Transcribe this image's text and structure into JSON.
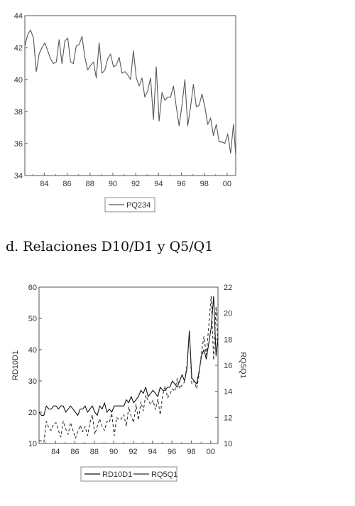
{
  "heading": "d. Relaciones D10/D1 y Q5/Q1",
  "chart_data": [
    {
      "type": "line",
      "title": "",
      "xlabel": "",
      "ylabel": "",
      "xlim": [
        1982.3,
        2000.75
      ],
      "ylim": [
        34,
        44
      ],
      "xticks": [
        "84",
        "86",
        "88",
        "90",
        "92",
        "94",
        "96",
        "98",
        "00"
      ],
      "yticks": [
        "34",
        "36",
        "38",
        "40",
        "42",
        "44"
      ],
      "legend": "bottom-center",
      "series": [
        {
          "name": "PQ234",
          "color": "#555555",
          "x": [
            1982.3,
            1982.55,
            1982.8,
            1983.05,
            1983.3,
            1983.55,
            1983.8,
            1984.05,
            1984.3,
            1984.55,
            1984.8,
            1985.05,
            1985.3,
            1985.55,
            1985.8,
            1986.05,
            1986.3,
            1986.55,
            1986.8,
            1987.05,
            1987.3,
            1987.55,
            1987.8,
            1988.05,
            1988.3,
            1988.55,
            1988.8,
            1989.05,
            1989.3,
            1989.55,
            1989.8,
            1990.05,
            1990.3,
            1990.55,
            1990.8,
            1991.05,
            1991.3,
            1991.55,
            1991.8,
            1992.05,
            1992.3,
            1992.55,
            1992.8,
            1993.05,
            1993.3,
            1993.55,
            1993.8,
            1994.05,
            1994.3,
            1994.55,
            1994.8,
            1995.05,
            1995.3,
            1995.55,
            1995.8,
            1996.05,
            1996.3,
            1996.55,
            1996.8,
            1997.05,
            1997.3,
            1997.55,
            1997.8,
            1998.05,
            1998.3,
            1998.55,
            1998.8,
            1999.05,
            1999.3,
            1999.55,
            1999.8,
            2000.05,
            2000.3,
            2000.55,
            2000.75
          ],
          "y": [
            42.1,
            42.8,
            43.1,
            42.6,
            40.5,
            41.6,
            42.0,
            42.3,
            41.8,
            41.3,
            41.0,
            41.1,
            42.5,
            41.0,
            42.4,
            42.6,
            41.1,
            41.0,
            42.1,
            42.2,
            42.7,
            41.4,
            40.6,
            40.9,
            41.1,
            40.1,
            42.3,
            40.4,
            40.6,
            41.3,
            41.6,
            40.8,
            40.9,
            41.4,
            40.4,
            40.5,
            40.3,
            40.0,
            41.8,
            40.1,
            39.6,
            40.1,
            38.9,
            39.3,
            40.1,
            37.5,
            40.8,
            37.4,
            39.2,
            38.7,
            38.9,
            38.9,
            39.6,
            38.3,
            37.1,
            38.4,
            40.0,
            37.1,
            38.3,
            39.7,
            38.3,
            38.4,
            39.1,
            38.3,
            37.2,
            37.6,
            36.5,
            37.2,
            36.1,
            36.1,
            36.0,
            36.6,
            35.4,
            37.2,
            35.3
          ]
        }
      ]
    },
    {
      "type": "line",
      "title": "",
      "xlabel": "",
      "ylabel": "RD10D1",
      "ylabel_right": "RQ5Q1",
      "xlim": [
        1982.3,
        2000.75
      ],
      "ylim": [
        10,
        60
      ],
      "ylim_right": [
        10,
        22
      ],
      "xticks": [
        "84",
        "86",
        "88",
        "90",
        "92",
        "94",
        "96",
        "98",
        "00"
      ],
      "yticks": [
        "10",
        "20",
        "30",
        "40",
        "50",
        "60"
      ],
      "yticks_right": [
        "10",
        "12",
        "14",
        "16",
        "18",
        "20",
        "22"
      ],
      "legend": "bottom-center",
      "series": [
        {
          "name": "RD10D1",
          "axis": "left",
          "color": "#111111",
          "dash": "solid",
          "x": [
            1982.3,
            1982.55,
            1982.8,
            1983.05,
            1983.3,
            1983.55,
            1983.8,
            1984.05,
            1984.3,
            1984.55,
            1984.8,
            1985.05,
            1985.3,
            1985.55,
            1985.8,
            1986.05,
            1986.3,
            1986.55,
            1986.8,
            1987.05,
            1987.3,
            1987.55,
            1987.8,
            1988.05,
            1988.3,
            1988.55,
            1988.8,
            1989.05,
            1989.3,
            1989.55,
            1989.8,
            1990.05,
            1990.3,
            1990.55,
            1990.8,
            1991.05,
            1991.3,
            1991.55,
            1991.8,
            1992.05,
            1992.3,
            1992.55,
            1992.8,
            1993.05,
            1993.3,
            1993.55,
            1993.8,
            1994.05,
            1994.3,
            1994.55,
            1994.8,
            1995.05,
            1995.3,
            1995.55,
            1995.8,
            1996.05,
            1996.3,
            1996.55,
            1996.8,
            1997.05,
            1997.3,
            1997.55,
            1997.8,
            1998.05,
            1998.3,
            1998.55,
            1998.8,
            1999.05,
            1999.3,
            1999.55,
            1999.8,
            2000.05,
            2000.3,
            2000.55,
            2000.75
          ],
          "y": [
            20,
            19,
            19,
            22,
            21,
            21,
            22,
            22,
            21,
            22,
            22,
            20,
            21,
            22,
            21,
            20,
            19,
            21,
            21,
            22,
            20,
            21,
            22,
            20,
            19,
            22,
            21,
            23,
            20,
            21,
            20,
            22,
            22,
            22,
            22,
            22,
            24,
            23,
            25,
            23,
            24,
            25,
            27,
            26,
            28,
            25,
            26,
            27,
            26,
            25,
            28,
            27,
            27,
            28,
            28,
            30,
            29,
            28,
            30,
            32,
            30,
            34,
            46,
            31,
            30,
            29,
            33,
            38,
            40,
            37,
            42,
            47,
            57,
            38,
            44
          ]
        },
        {
          "name": "RQ5Q1",
          "axis": "right",
          "color": "#333333",
          "dash": "4,3",
          "x": [
            1982.3,
            1982.55,
            1982.8,
            1983.05,
            1983.3,
            1983.55,
            1983.8,
            1984.05,
            1984.3,
            1984.55,
            1984.8,
            1985.05,
            1985.3,
            1985.55,
            1985.8,
            1986.05,
            1986.3,
            1986.55,
            1986.8,
            1987.05,
            1987.3,
            1987.55,
            1987.8,
            1988.05,
            1988.3,
            1988.55,
            1988.8,
            1989.05,
            1989.3,
            1989.55,
            1989.8,
            1990.05,
            1990.3,
            1990.55,
            1990.8,
            1991.05,
            1991.3,
            1991.55,
            1991.8,
            1992.05,
            1992.3,
            1992.55,
            1992.8,
            1993.05,
            1993.3,
            1993.55,
            1993.8,
            1994.05,
            1994.3,
            1994.55,
            1994.8,
            1995.05,
            1995.3,
            1995.55,
            1995.8,
            1996.05,
            1996.3,
            1996.55,
            1996.8,
            1997.05,
            1997.3,
            1997.55,
            1997.8,
            1998.05,
            1998.3,
            1998.55,
            1998.8,
            1999.05,
            1999.3,
            1999.55,
            1999.8,
            2000.05,
            2000.3,
            2000.55,
            2000.75
          ],
          "y": [
            10.2,
            10.2,
            10.1,
            11.7,
            11.2,
            11.0,
            11.5,
            11.6,
            11.0,
            10.5,
            11.7,
            11.1,
            10.7,
            11.6,
            11.0,
            10.4,
            10.9,
            11.4,
            10.9,
            11.3,
            10.6,
            11.6,
            12.2,
            10.7,
            11.3,
            11.9,
            11.3,
            11.0,
            11.7,
            11.6,
            12.3,
            10.6,
            12.0,
            11.8,
            11.9,
            12.2,
            11.3,
            12.8,
            12.1,
            11.6,
            13.0,
            11.8,
            13.2,
            12.5,
            13.7,
            13.3,
            13.0,
            13.3,
            12.6,
            13.4,
            12.2,
            13.7,
            14.4,
            13.5,
            13.8,
            14.2,
            14.0,
            15.0,
            14.2,
            14.5,
            14.7,
            16.0,
            18.7,
            14.6,
            14.8,
            14.2,
            15.3,
            17.0,
            18.2,
            16.8,
            19.0,
            21.3,
            16.4,
            20.5,
            17.5
          ]
        }
      ]
    }
  ]
}
